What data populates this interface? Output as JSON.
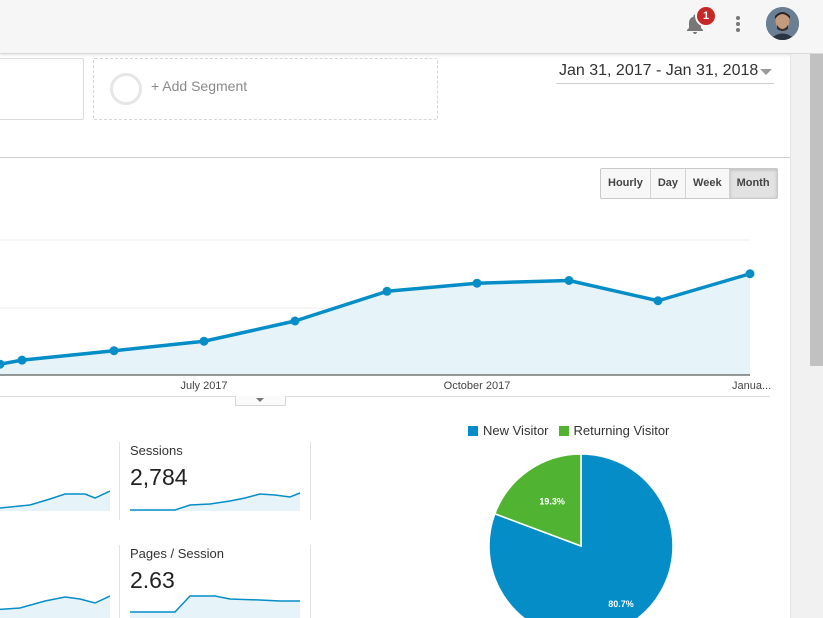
{
  "header": {
    "notification_count": "1",
    "icons": [
      "bell-icon",
      "more-vert-icon",
      "avatar"
    ]
  },
  "segments": {
    "add_segment_label": "+ Add Segment"
  },
  "date_range": {
    "label": "Jan 31, 2017 - Jan 31, 2018"
  },
  "granularity": {
    "options": [
      "Hourly",
      "Day",
      "Week",
      "Month"
    ],
    "selected": "Month"
  },
  "chart_data": {
    "type": "area",
    "x_tick_labels": [
      "July 2017",
      "October 2017",
      "Janua..."
    ],
    "series": [
      {
        "values": [
          8,
          11,
          18,
          25,
          40,
          62,
          68,
          70,
          55,
          75
        ]
      }
    ],
    "ylim": [
      0,
      100
    ],
    "color": "#058dc7",
    "fill": "#e6f4fa",
    "grid": true
  },
  "metrics": [
    {
      "label": "Sessions",
      "value": "2,784"
    },
    {
      "label": "Pages / Session",
      "value": "2.63"
    }
  ],
  "visitor_pie": {
    "type": "pie",
    "legend": [
      "New Visitor",
      "Returning Visitor"
    ],
    "values": [
      80.7,
      19.3
    ],
    "labels": [
      "80.7%",
      "19.3%"
    ],
    "colors": [
      "#058dc7",
      "#50b432"
    ]
  },
  "colors": {
    "primary": "#058dc7",
    "secondary": "#50b432",
    "badge": "#c62828"
  }
}
